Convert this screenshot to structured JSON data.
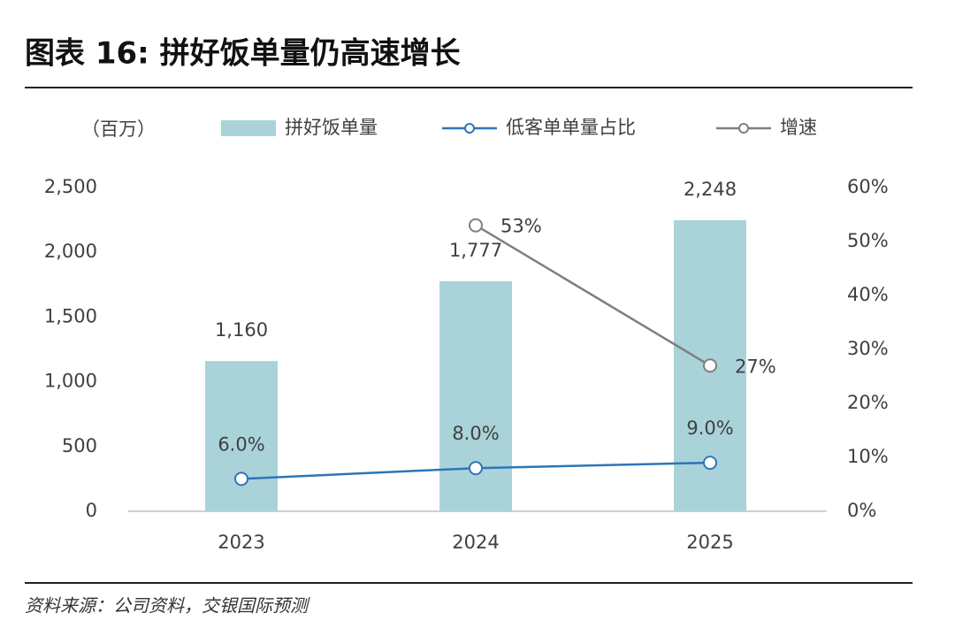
{
  "chart_data": {
    "type": "bar",
    "title": "图表 16: 拼好饭单量仍高速增长",
    "y_label": "（百万）",
    "source": "资料来源：公司资料，交银国际预测",
    "categories": [
      "2023",
      "2024",
      "2025"
    ],
    "series": [
      {
        "name": "拼好饭单量",
        "type": "bar",
        "color": "#a9d3d9",
        "values": [
          1160,
          1777,
          2248
        ],
        "value_labels": [
          "1,160",
          "1,777",
          "2,248"
        ]
      },
      {
        "name": "低客单单量占比",
        "type": "line",
        "axis": "y2",
        "color": "#2e75b6",
        "values": [
          6,
          8,
          9
        ],
        "value_labels": [
          "6.0%",
          "8.0%",
          "9.0%"
        ]
      },
      {
        "name": "增速",
        "type": "line",
        "axis": "y2",
        "color": "#7f7f7f",
        "values": [
          null,
          53,
          27
        ],
        "value_labels": [
          null,
          "53%",
          "27%"
        ]
      }
    ],
    "ylim": [
      0,
      2500
    ],
    "yticks": [
      0,
      500,
      {
        "value": 1000,
        "label": "1,000"
      },
      {
        "value": 1500,
        "label": "1,500"
      },
      {
        "value": 2000,
        "label": "2,000"
      },
      {
        "value": 2500,
        "label": "2,500"
      }
    ],
    "y2lim": [
      0,
      60
    ],
    "y2ticks": [
      {
        "value": 0,
        "label": "0%"
      },
      {
        "value": 10,
        "label": "10%"
      },
      {
        "value": 20,
        "label": "20%"
      },
      {
        "value": 30,
        "label": "30%"
      },
      {
        "value": 40,
        "label": "40%"
      },
      {
        "value": 50,
        "label": "50%"
      },
      {
        "value": 60,
        "label": "60%"
      }
    ],
    "grid": false
  }
}
